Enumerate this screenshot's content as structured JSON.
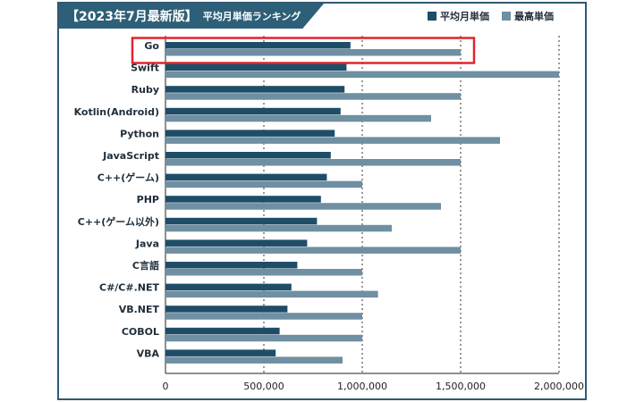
{
  "title": "【2023年7月最新版】",
  "subtitle": "平均月単価ランキング",
  "colors": {
    "avg": "#1e4d68",
    "max": "#6f8fa2",
    "highlight": "#e2242a",
    "frame": "#2e5a73"
  },
  "chart_data": {
    "type": "bar",
    "orientation": "horizontal",
    "title": "【2023年7月最新版】 平均月単価ランキング",
    "xlabel": "",
    "ylabel": "",
    "xlim": [
      0,
      2000000
    ],
    "xticks": [
      0,
      500000,
      1000000,
      1500000,
      2000000
    ],
    "xtick_labels": [
      "0",
      "500,000",
      "1,000,000",
      "1,500,000",
      "2,000,000"
    ],
    "grid": "vertical-dotted",
    "legend_position": "top-right",
    "highlight_category": "Go",
    "categories": [
      "Go",
      "Swift",
      "Ruby",
      "Kotlin(Android)",
      "Python",
      "JavaScript",
      "C++(ゲーム)",
      "PHP",
      "C++(ゲーム以外)",
      "Java",
      "C言語",
      "C#/C#.NET",
      "VB.NET",
      "COBOL",
      "VBA"
    ],
    "series": [
      {
        "name": "平均月単価",
        "values": [
          940000,
          920000,
          910000,
          890000,
          860000,
          840000,
          820000,
          790000,
          770000,
          720000,
          670000,
          640000,
          620000,
          580000,
          560000
        ]
      },
      {
        "name": "最高単価",
        "values": [
          1500000,
          2000000,
          1500000,
          1350000,
          1700000,
          1500000,
          1000000,
          1400000,
          1150000,
          1500000,
          1000000,
          1080000,
          1000000,
          1000000,
          900000
        ]
      }
    ]
  }
}
